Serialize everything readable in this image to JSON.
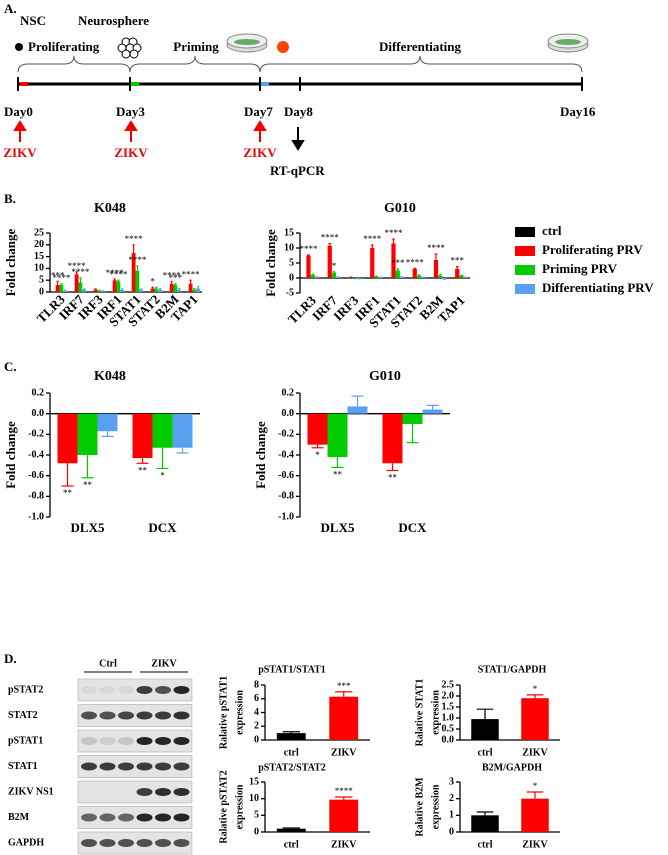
{
  "panel_a": {
    "label": "A.",
    "nsc": "NSC",
    "neurosphere": "Neurosphere",
    "stages": [
      "Proliferating",
      "Priming",
      "Differentiating"
    ],
    "days": [
      "Day0",
      "Day3",
      "Day7",
      "Day8",
      "Day16"
    ],
    "infection": [
      "ZIKV",
      "ZIKV",
      "ZIKV"
    ],
    "readout": "RT-qPCR"
  },
  "panel_labels": [
    "B.",
    "C.",
    "D."
  ],
  "blot": {
    "groups": [
      "Ctrl",
      "ZIKV"
    ],
    "rows": [
      "pSTAT2",
      "STAT2",
      "pSTAT1",
      "STAT1",
      "ZIKV NS1",
      "B2M",
      "GAPDH"
    ]
  },
  "chart_data": [
    {
      "type": "bar",
      "title": "K048",
      "ylabel": [
        "Fold change"
      ],
      "categories": [
        "TLR3",
        "IRF7",
        "IRF3",
        "IRF1",
        "STAT1",
        "STAT2",
        "B2M",
        "TAP1"
      ],
      "series": [
        {
          "color": "#000000",
          "values": [
            0,
            0,
            0,
            0,
            0,
            0,
            0,
            0
          ]
        },
        {
          "color": "#ff0000",
          "values": [
            3,
            7.5,
            1,
            5,
            16.5,
            1.5,
            3.5,
            3.5
          ],
          "errors": [
            1.5,
            1,
            0.3,
            0.5,
            3.5,
            0.5,
            1,
            1.5
          ],
          "sig": [
            "***",
            "****",
            null,
            "****",
            "****",
            "*",
            "****",
            "****"
          ]
        },
        {
          "color": "#00cc00",
          "values": [
            3,
            4,
            0.5,
            4.5,
            9,
            1.5,
            3,
            1
          ],
          "errors": [
            0.5,
            2,
            0.2,
            0.5,
            2,
            0.5,
            0.5,
            0.5
          ],
          "sig": [
            "****",
            "****",
            null,
            "****",
            "****",
            null,
            "***",
            null
          ]
        },
        {
          "color": "#5aa0f0",
          "values": [
            0.5,
            1,
            0.3,
            1,
            1,
            1,
            1,
            1.5
          ],
          "errors": [
            0.3,
            0.3,
            0.2,
            0.3,
            0.3,
            0.5,
            0.5,
            0.8
          ]
        }
      ],
      "ylim": [
        0,
        25
      ],
      "yticks": [
        0,
        5,
        10,
        15,
        20,
        25
      ]
    },
    {
      "type": "bar",
      "title": "G010",
      "ylabel": [
        "Fold change"
      ],
      "categories": [
        "TLR3",
        "IRF7",
        "IRF3",
        "IRF1",
        "STAT1",
        "STAT2",
        "B2M",
        "TAP1"
      ],
      "series": [
        {
          "name": "ctrl",
          "color": "#000000",
          "values": [
            0,
            0,
            0,
            0,
            0,
            0,
            0,
            0
          ]
        },
        {
          "name": "Proliferating PRV",
          "color": "#ff0000",
          "values": [
            7.5,
            10.8,
            0.2,
            10,
            11.5,
            3,
            6,
            3
          ],
          "errors": [
            0.2,
            0.7,
            0.1,
            1,
            1.5,
            0.2,
            2,
            0.8
          ],
          "sig": [
            "****",
            "****",
            null,
            "****",
            "****",
            "****",
            "****",
            "***"
          ]
        },
        {
          "name": "Priming PRV",
          "color": "#00cc00",
          "values": [
            1,
            1.8,
            -0.1,
            0.5,
            2.5,
            0.8,
            0.8,
            0.8
          ],
          "errors": [
            0.2,
            0.3,
            0.1,
            0.1,
            0.5,
            0.2,
            0.3,
            0.1
          ],
          "sig": [
            null,
            "*",
            null,
            null,
            "***",
            null,
            null,
            null
          ]
        },
        {
          "name": "Differentiating PRV",
          "color": "#5aa0f0",
          "values": [
            0.3,
            0.3,
            -0.2,
            0.2,
            0.3,
            0.2,
            -0.3,
            0.2
          ],
          "errors": [
            0.1,
            0.1,
            0.1,
            0.1,
            0.1,
            0.1,
            0.2,
            0.1
          ]
        }
      ],
      "ylim": [
        -5,
        15
      ],
      "yticks": [
        -5,
        0,
        5,
        10,
        15
      ],
      "legend": "right"
    },
    {
      "type": "bar",
      "title": "K048",
      "ylabel": [
        "Fold change"
      ],
      "categories": [
        "DLX5",
        "DCX"
      ],
      "series": [
        {
          "color": "#ff0000",
          "values": [
            -0.48,
            -0.43
          ],
          "errors": [
            0.22,
            0.05
          ],
          "sig": [
            "**",
            "**"
          ]
        },
        {
          "color": "#00cc00",
          "values": [
            -0.4,
            -0.33
          ],
          "errors": [
            0.22,
            0.2
          ],
          "sig": [
            "**",
            "*"
          ]
        },
        {
          "color": "#5aa0f0",
          "values": [
            -0.17,
            -0.33
          ],
          "errors": [
            0.05,
            0.05
          ]
        }
      ],
      "ylim": [
        -1,
        0.2
      ],
      "yticks": [
        {
          "value": -1,
          "label": "-1.0"
        },
        -0.8,
        -0.6,
        -0.4,
        -0.2,
        {
          "value": 0,
          "label": "0.0"
        },
        0.2
      ]
    },
    {
      "type": "bar",
      "title": "G010",
      "ylabel": [
        "Fold change"
      ],
      "categories": [
        "DLX5",
        "DCX"
      ],
      "series": [
        {
          "color": "#ff0000",
          "values": [
            -0.3,
            -0.48
          ],
          "errors": [
            0.03,
            0.07
          ],
          "sig": [
            "*",
            "**"
          ]
        },
        {
          "color": "#00cc00",
          "values": [
            -0.42,
            -0.1
          ],
          "errors": [
            0.1,
            0.18
          ],
          "sig": [
            "**",
            null
          ]
        },
        {
          "color": "#5aa0f0",
          "values": [
            0.07,
            0.04
          ],
          "errors": [
            0.1,
            0.04
          ]
        }
      ],
      "ylim": [
        -1,
        0.2
      ],
      "yticks": [
        {
          "value": -1,
          "label": "-1.0"
        },
        -0.8,
        -0.6,
        -0.4,
        -0.2,
        {
          "value": 0,
          "label": "0.0"
        },
        0.2
      ]
    },
    {
      "type": "bar",
      "title": "pSTAT1/STAT1",
      "ylabel": [
        "Ralative pSTAT1",
        "expression"
      ],
      "categories": [
        "ctrl",
        "ZIKV"
      ],
      "series": [
        {
          "color": [
            "#000000",
            "#ff0000"
          ],
          "values": [
            1,
            6.3
          ],
          "errors": [
            0.2,
            0.7
          ],
          "sig": [
            null,
            "***"
          ]
        }
      ],
      "ylim": [
        0,
        8
      ],
      "yticks": [
        0,
        2,
        4,
        6,
        8
      ]
    },
    {
      "type": "bar",
      "title": "STAT1/GAPDH",
      "ylabel": [
        "Ralative STAT1",
        "expression"
      ],
      "categories": [
        "ctrl",
        "ZIKV"
      ],
      "series": [
        {
          "color": [
            "#000000",
            "#ff0000"
          ],
          "values": [
            0.95,
            1.9
          ],
          "errors": [
            0.45,
            0.15
          ],
          "sig": [
            null,
            "*"
          ]
        }
      ],
      "ylim": [
        0,
        2.5
      ],
      "yticks": [
        {
          "value": 0,
          "label": "0.0"
        },
        0.5,
        {
          "value": 1,
          "label": "1.0"
        },
        1.5,
        {
          "value": 2,
          "label": "2.0"
        },
        2.5
      ]
    },
    {
      "type": "bar",
      "title": "pSTAT2/STAT2",
      "ylabel": [
        "Ralative pSTAT2",
        "expression"
      ],
      "categories": [
        "ctrl",
        "ZIKV"
      ],
      "series": [
        {
          "color": [
            "#000000",
            "#ff0000"
          ],
          "values": [
            1,
            9.7
          ],
          "errors": [
            0.2,
            0.8
          ],
          "sig": [
            null,
            "****"
          ]
        }
      ],
      "ylim": [
        0,
        15
      ],
      "yticks": [
        0,
        5,
        10,
        15
      ]
    },
    {
      "type": "bar",
      "title": "B2M/GAPDH",
      "ylabel": [
        "Ralative B2M",
        "expression"
      ],
      "categories": [
        "ctrl",
        "ZIKV"
      ],
      "series": [
        {
          "color": [
            "#000000",
            "#ff0000"
          ],
          "values": [
            1,
            2
          ],
          "errors": [
            0.2,
            0.4
          ],
          "sig": [
            null,
            "*"
          ]
        }
      ],
      "ylim": [
        0,
        3
      ],
      "yticks": [
        0,
        1,
        2,
        3
      ]
    }
  ]
}
